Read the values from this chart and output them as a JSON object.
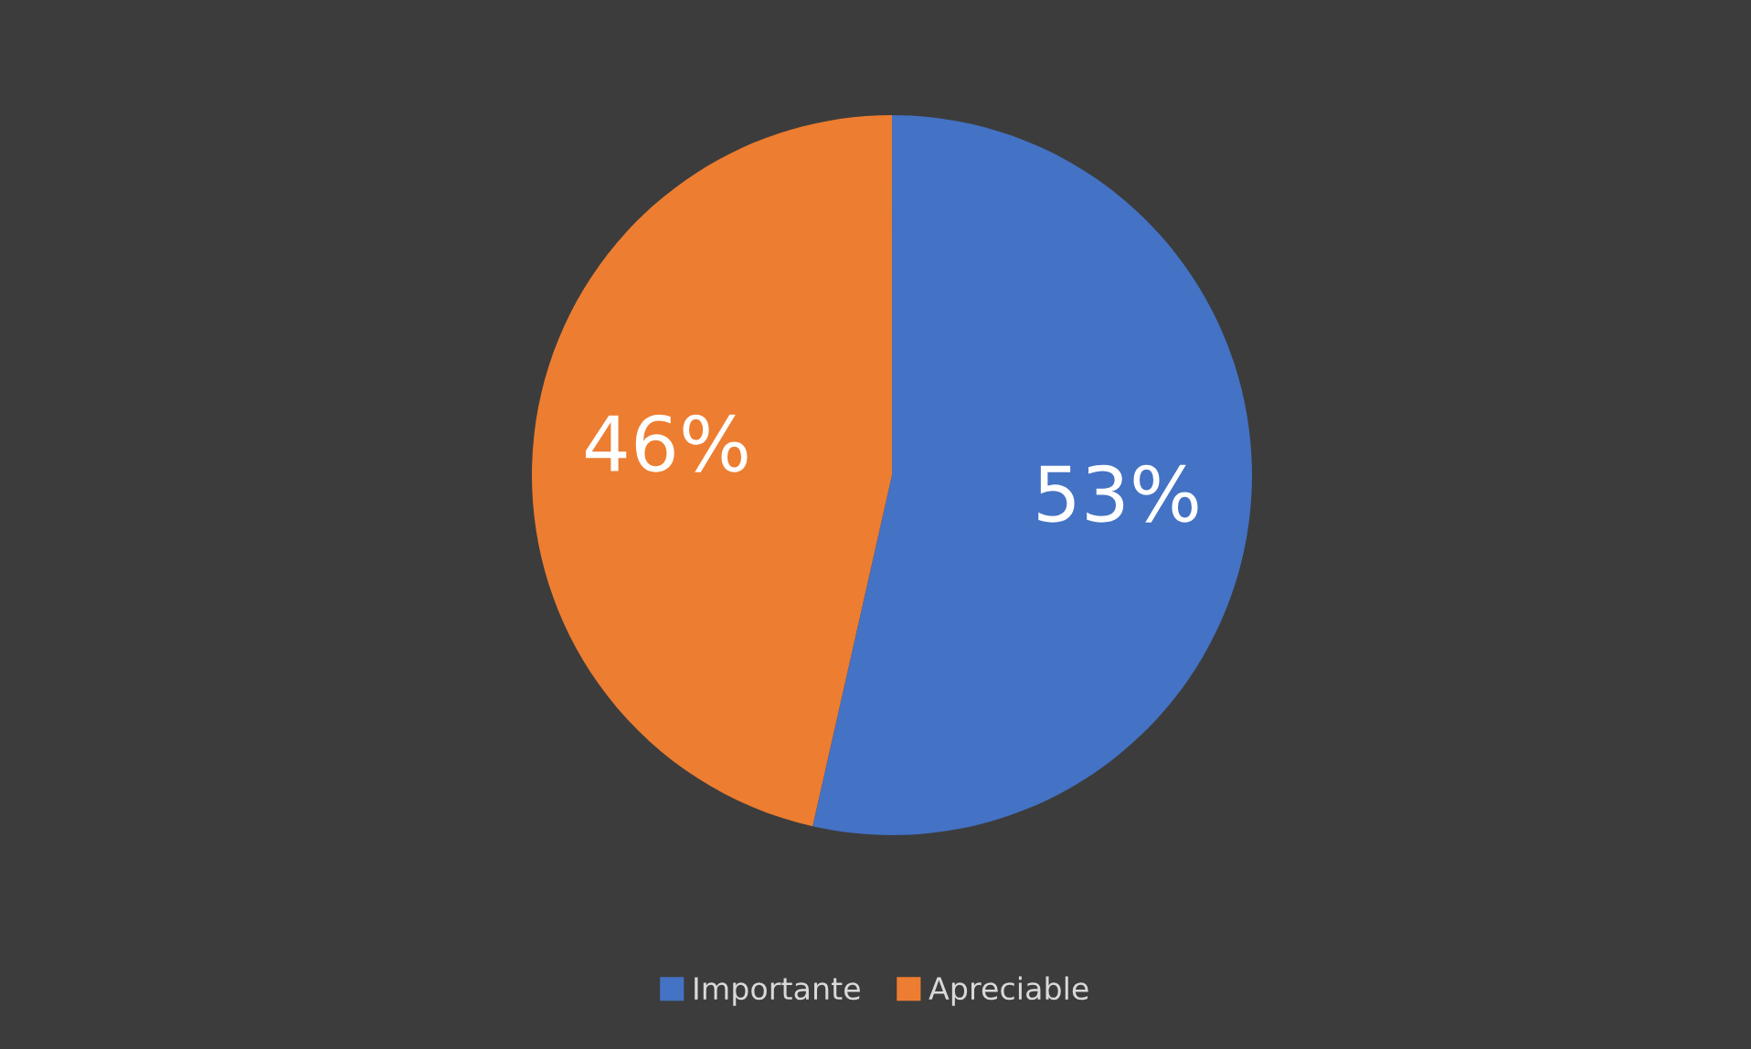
{
  "chart_data": {
    "type": "pie",
    "categories": [
      "Importante",
      "Apreciable"
    ],
    "values": [
      53,
      46
    ],
    "colors": [
      "#4472c4",
      "#ed7d31"
    ],
    "value_labels": [
      "53%",
      "46%"
    ],
    "legend": "bottom"
  }
}
